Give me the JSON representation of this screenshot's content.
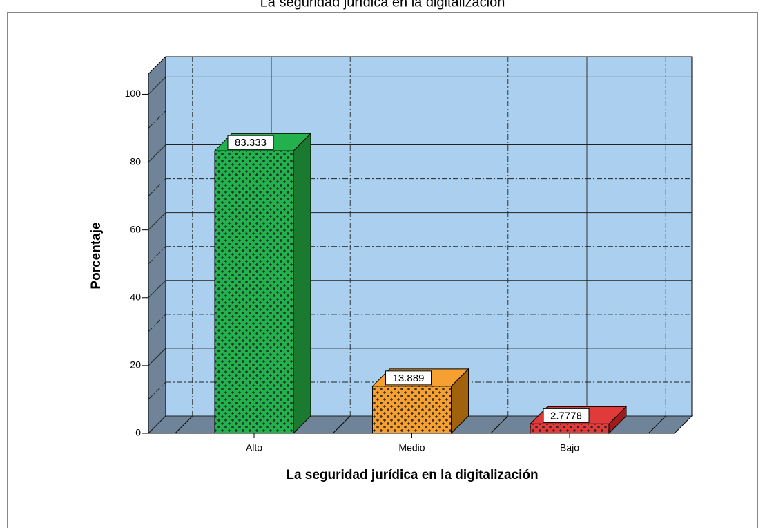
{
  "chart_data": {
    "type": "bar3d",
    "title": "La seguridad jurídica en la digitalización",
    "xlabel": "La seguridad jurídica en la digitalización",
    "ylabel": "Porcentaje",
    "categories": [
      "Alto",
      "Medio",
      "Bajo"
    ],
    "values": [
      83.333,
      13.889,
      2.7778
    ],
    "colors": [
      "#22b14c",
      "#f7a032",
      "#e03a3a"
    ],
    "side_colors": [
      "#1a7a30",
      "#a0620c",
      "#a01c1c"
    ],
    "ylim": [
      0,
      106
    ],
    "yticks": [
      0,
      20,
      40,
      60,
      80,
      100
    ],
    "grid": true
  }
}
